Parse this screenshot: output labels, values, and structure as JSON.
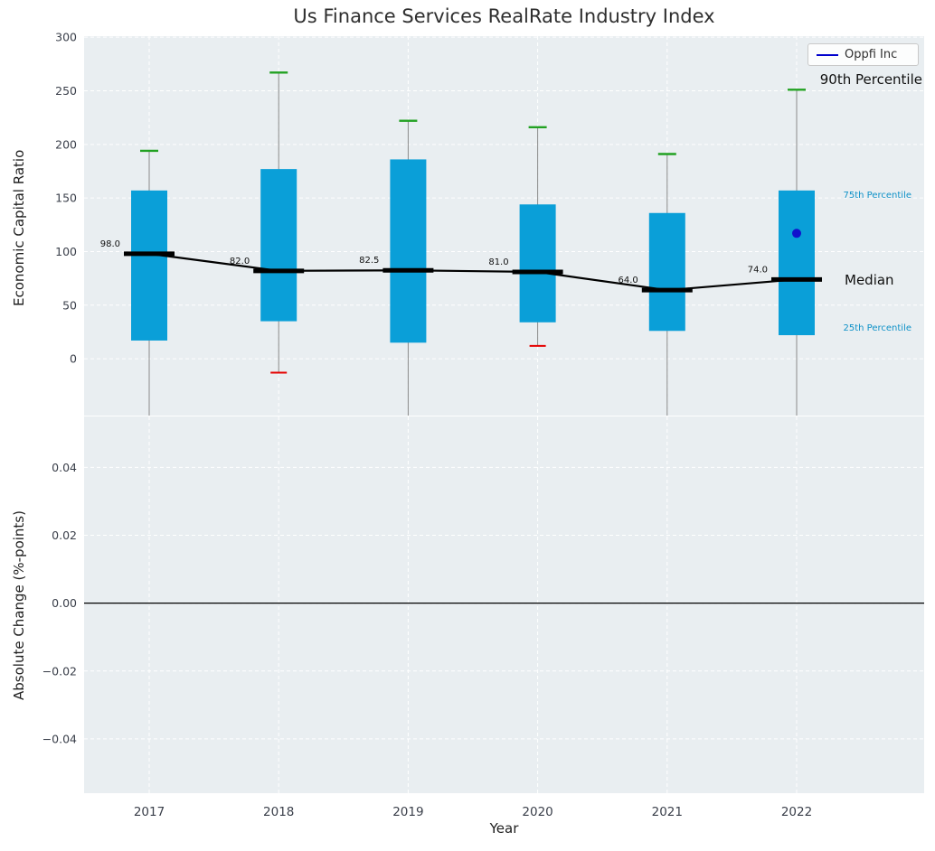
{
  "title": "Us Finance Services RealRate Industry Index",
  "legend": {
    "label": "Oppfi Inc"
  },
  "annotations": {
    "p90": "90th Percentile",
    "p75": "75th Percentile",
    "median": "Median",
    "p25": "25th Percentile"
  },
  "colors": {
    "plot_bg": "#e9eef1",
    "grid": "#ffffff",
    "box": "#0a9fd8",
    "p90_cap": "#21a121",
    "p10_cap": "#e50000",
    "median_line": "#000000",
    "whisker": "#8a8a8a",
    "company_dot": "#1111cc",
    "legend_line": "#0000cd",
    "percentile_text": "#1092c8",
    "tick_text": "#3a3f4a"
  },
  "chart_data": [
    {
      "type": "box",
      "title": "Us Finance Services RealRate Industry Index",
      "xlabel": "Year",
      "ylabel": "Economic Capital Ratio",
      "ylim": [
        -53,
        301
      ],
      "grid": true,
      "legend_position": "upper right",
      "yticks": [
        {
          "value": 0,
          "label": "0"
        },
        {
          "value": 50,
          "label": "50"
        },
        {
          "value": 100,
          "label": "100"
        },
        {
          "value": 150,
          "label": "150"
        },
        {
          "value": 200,
          "label": "200"
        },
        {
          "value": 250,
          "label": "250"
        },
        {
          "value": 300,
          "label": "300"
        }
      ],
      "categories": [
        "2017",
        "2018",
        "2019",
        "2020",
        "2021",
        "2022"
      ],
      "boxes": [
        {
          "year": "2017",
          "median": 98.0,
          "median_label": "98.0",
          "q1": 17,
          "q3": 157,
          "p90": 194,
          "p10": null
        },
        {
          "year": "2018",
          "median": 82.0,
          "median_label": "82.0",
          "q1": 35,
          "q3": 177,
          "p90": 267,
          "p10": -13
        },
        {
          "year": "2019",
          "median": 82.5,
          "median_label": "82.5",
          "q1": 15,
          "q3": 186,
          "p90": 222,
          "p10": null
        },
        {
          "year": "2020",
          "median": 81.0,
          "median_label": "81.0",
          "q1": 34,
          "q3": 144,
          "p90": 216,
          "p10": 12
        },
        {
          "year": "2021",
          "median": 64.0,
          "median_label": "64.0",
          "q1": 26,
          "q3": 136,
          "p90": 191,
          "p10": null
        },
        {
          "year": "2022",
          "median": 74.0,
          "median_label": "74.0",
          "q1": 22,
          "q3": 157,
          "p90": 251,
          "p10": null
        }
      ],
      "company_point": {
        "name": "Oppfi Inc",
        "year": "2022",
        "value": 117
      }
    },
    {
      "type": "line",
      "xlabel": "Year",
      "ylabel": "Absolute Change (%-points)",
      "ylim": [
        -0.056,
        0.055
      ],
      "grid": true,
      "zero_line": true,
      "yticks": [
        {
          "value": -0.04,
          "label": "−0.04"
        },
        {
          "value": -0.02,
          "label": "−0.02"
        },
        {
          "value": 0.0,
          "label": "0.00"
        },
        {
          "value": 0.02,
          "label": "0.02"
        },
        {
          "value": 0.04,
          "label": "0.04"
        }
      ],
      "categories": [
        "2017",
        "2018",
        "2019",
        "2020",
        "2021",
        "2022"
      ],
      "series": []
    }
  ]
}
